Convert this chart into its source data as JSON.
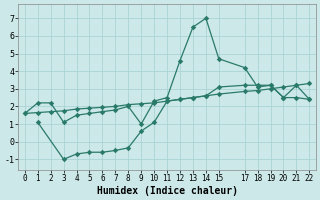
{
  "xlabel": "Humidex (Indice chaleur)",
  "ylabel": "",
  "bg_color": "#cce8e8",
  "grid_color": "#aad4d4",
  "line_color": "#2a7a6a",
  "xlim": [
    -0.5,
    22.5
  ],
  "ylim": [
    -1.6,
    7.8
  ],
  "xticks": [
    0,
    1,
    2,
    3,
    4,
    5,
    6,
    7,
    8,
    9,
    10,
    11,
    12,
    13,
    14,
    15,
    17,
    18,
    19,
    20,
    21,
    22
  ],
  "yticks": [
    -1,
    0,
    1,
    2,
    3,
    4,
    5,
    6,
    7
  ],
  "line1_x": [
    0,
    1,
    2,
    3,
    4,
    5,
    6,
    7,
    8,
    9,
    10,
    11,
    12,
    13,
    14,
    15,
    17,
    18,
    19,
    20,
    21,
    22
  ],
  "line1_y": [
    1.6,
    2.2,
    2.2,
    1.1,
    1.5,
    1.6,
    1.7,
    1.8,
    2.0,
    1.0,
    2.3,
    2.5,
    4.6,
    6.5,
    7.0,
    4.7,
    4.2,
    3.1,
    3.2,
    2.5,
    2.5,
    2.4
  ],
  "line2_x": [
    0,
    1,
    2,
    3,
    4,
    5,
    6,
    7,
    8,
    9,
    10,
    11,
    12,
    13,
    14,
    15,
    17,
    18,
    19,
    20,
    21,
    22
  ],
  "line2_y": [
    1.6,
    1.65,
    1.7,
    1.75,
    1.85,
    1.9,
    1.95,
    2.0,
    2.1,
    2.15,
    2.2,
    2.3,
    2.4,
    2.5,
    2.6,
    2.7,
    2.85,
    2.9,
    3.0,
    3.1,
    3.2,
    3.3
  ],
  "line3_x": [
    1,
    3,
    4,
    5,
    6,
    7,
    8,
    9,
    10,
    11,
    12,
    13,
    14,
    15,
    17,
    18,
    19,
    20,
    21,
    22
  ],
  "line3_y": [
    1.1,
    -1.0,
    -0.7,
    -0.6,
    -0.6,
    -0.5,
    -0.35,
    0.6,
    1.1,
    2.3,
    2.4,
    2.5,
    2.6,
    3.1,
    3.2,
    3.2,
    3.2,
    2.5,
    3.2,
    2.4
  ]
}
